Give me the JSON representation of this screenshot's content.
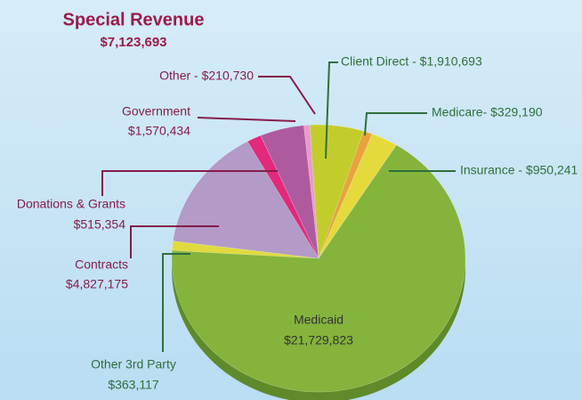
{
  "chart_data": {
    "type": "pie",
    "title": "Special Revenue",
    "subtitle": "$7,123,693",
    "categories": [
      "Client Direct - $1,910,693",
      "Medicare- $329,190",
      "Insurance - $950,241",
      "Medicaid",
      "Other 3rd Party",
      "Contracts",
      "Donations & Grants",
      "Government",
      "Other - $210,730"
    ],
    "values": [
      1910693,
      329190,
      950241,
      21729823,
      363117,
      4827175,
      515354,
      1570434,
      210730
    ],
    "value_labels": [
      null,
      null,
      null,
      "$21,729,823",
      "$363,117",
      "$4,827,175",
      "$515,354",
      "$1,570,434",
      null
    ],
    "colors": [
      "#c2cd2c",
      "#e9a33c",
      "#e5da3c",
      "#84b43c",
      "#e0da3e",
      "#b39ac7",
      "#e2297b",
      "#ae5a9f",
      "#e89bc8"
    ]
  }
}
